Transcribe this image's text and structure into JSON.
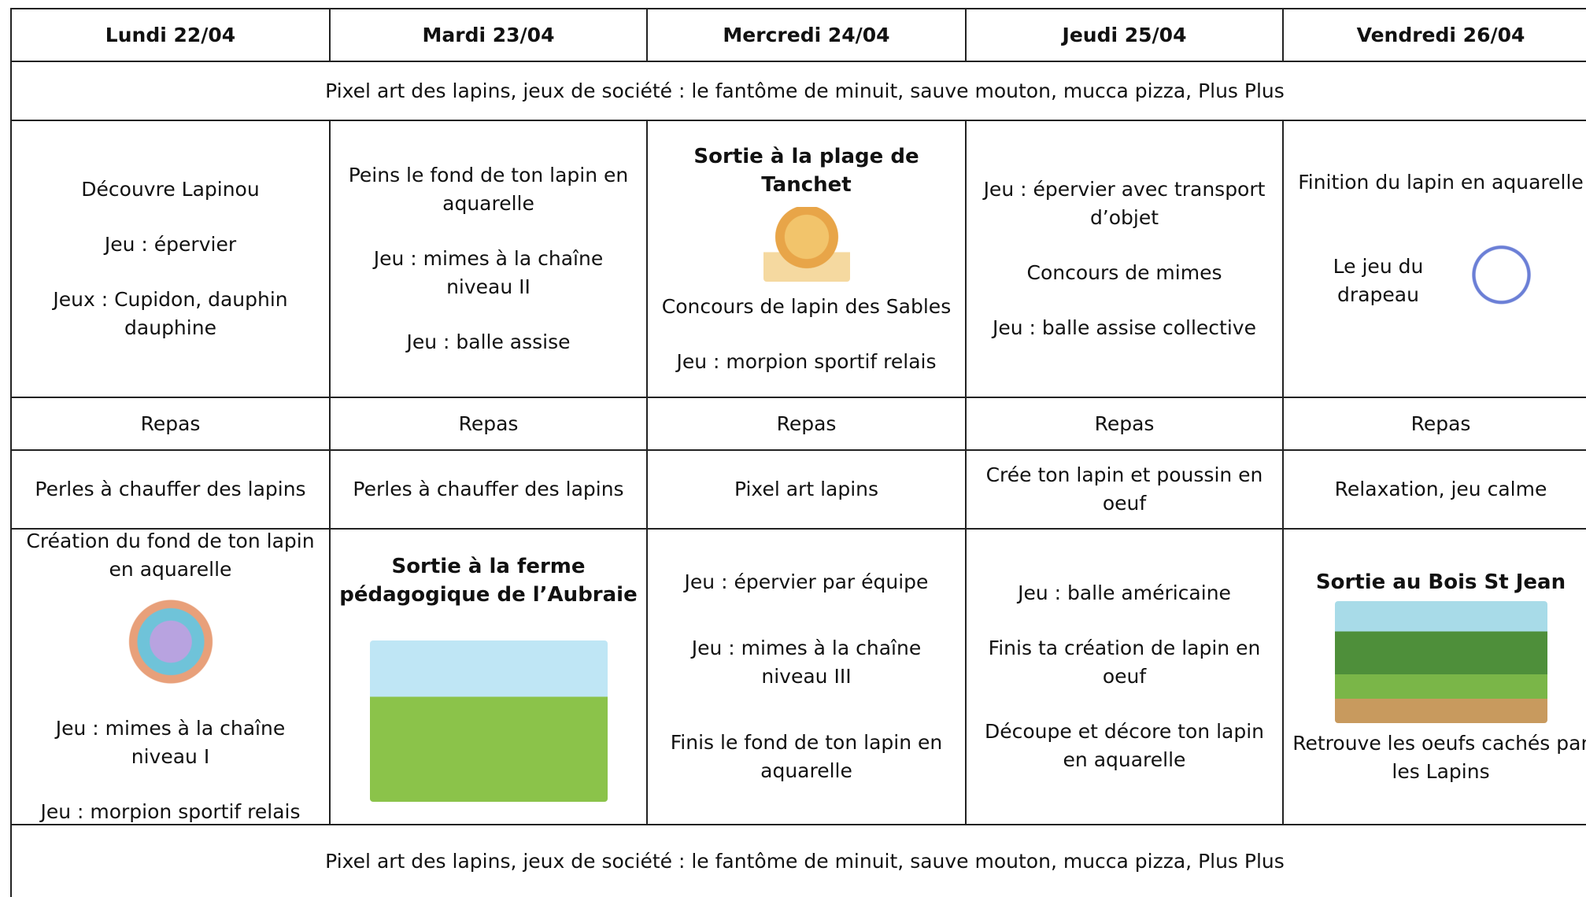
{
  "table": {
    "headers": [
      "Lundi 22/04",
      "Mardi 23/04",
      "Mercredi 24/04",
      "Jeudi 25/04",
      "Vendredi 26/04"
    ],
    "top_banner": "Pixel art des lapins, jeux de société : le fantôme de minuit,  sauve mouton, mucca pizza, Plus Plus",
    "morning": [
      {
        "items": [
          "Découvre Lapinou",
          "Jeu : épervier",
          "Jeux : Cupidon, dauphin dauphine"
        ]
      },
      {
        "items": [
          "Peins le fond de ton lapin en aquarelle",
          "Jeu : mimes à la chaîne niveau II",
          "Jeu : balle assise"
        ]
      },
      {
        "title": "Sortie à la  plage de Tanchet",
        "items": [
          "Concours de lapin des Sables",
          "Jeu : morpion sportif relais"
        ]
      },
      {
        "items": [
          "Jeu : épervier avec transport d’objet",
          "Concours de mimes",
          "Jeu : balle assise collective"
        ]
      },
      {
        "items": [
          "Finition du lapin en aquarelle",
          "Le jeu du drapeau"
        ]
      }
    ],
    "lunch": [
      "Repas",
      "Repas",
      "Repas",
      "Repas",
      "Repas"
    ],
    "afternoon": [
      "Perles à chauffer des lapins",
      "Perles à chauffer des lapins",
      "Pixel art lapins",
      "Crée ton lapin et poussin en oeuf",
      "Relaxation, jeu calme"
    ],
    "late_afternoon": [
      {
        "items": [
          "Création du fond de ton lapin en aquarelle",
          "Jeu : mimes à la chaîne niveau I",
          "Jeu : morpion sportif relais"
        ]
      },
      {
        "title": "Sortie à la ferme pédagogique de l’Aubraie",
        "items": []
      },
      {
        "items": [
          "Jeu : épervier par équipe",
          "Jeu : mimes à la chaîne niveau III",
          "Finis le fond de ton lapin en aquarelle"
        ]
      },
      {
        "items": [
          "Jeu : balle américaine",
          "Finis ta création de lapin en oeuf",
          "Découpe et décore ton lapin en aquarelle"
        ]
      },
      {
        "title": "Sortie au Bois St Jean",
        "items": [
          "Retrouve les oeufs cachés par les Lapins"
        ]
      }
    ],
    "bottom_banner": "Pixel art des lapins, jeux de société : le fantôme de minuit,  sauve mouton, mucca pizza, Plus Plus"
  }
}
